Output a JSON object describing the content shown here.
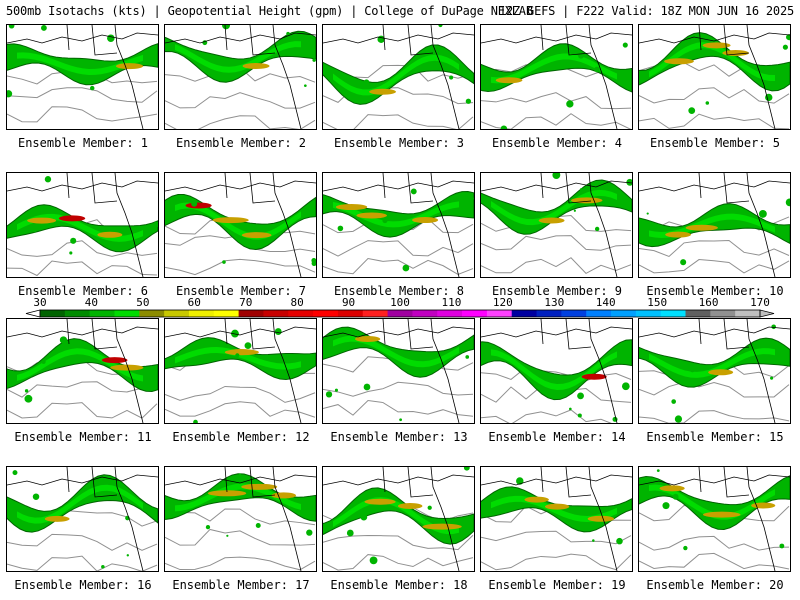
{
  "header": {
    "title_left": "500mb Isotachs (kts) | Geopotential Height (gpm) | College of DuPage NEXLAB",
    "title_right": "12Z GEFS | F222 Valid: 18Z MON JUN 16 2025"
  },
  "members": [
    "Ensemble Member: 1",
    "Ensemble Member: 2",
    "Ensemble Member: 3",
    "Ensemble Member: 4",
    "Ensemble Member: 5",
    "Ensemble Member: 6",
    "Ensemble Member: 7",
    "Ensemble Member: 8",
    "Ensemble Member: 9",
    "Ensemble Member: 10",
    "Ensemble Member: 11",
    "Ensemble Member: 12",
    "Ensemble Member: 13",
    "Ensemble Member: 14",
    "Ensemble Member: 15",
    "Ensemble Member: 16",
    "Ensemble Member: 17",
    "Ensemble Member: 18",
    "Ensemble Member: 19",
    "Ensemble Member: 20"
  ],
  "colorbar": {
    "labels": [
      "30",
      "40",
      "50",
      "60",
      "70",
      "80",
      "90",
      "100",
      "110",
      "120",
      "130",
      "140",
      "150",
      "160",
      "170"
    ],
    "colors": [
      "#006400",
      "#008c00",
      "#00b400",
      "#00dc00",
      "#8c8c00",
      "#c8c800",
      "#f0f000",
      "#ffff00",
      "#a00000",
      "#c80000",
      "#e60000",
      "#ff0000",
      "#dc0000",
      "#ff2020",
      "#a000a0",
      "#c000c0",
      "#e000e0",
      "#ff00ff",
      "#ff40ff",
      "#0000a0",
      "#0020c0",
      "#0040e0",
      "#0080ff",
      "#00a0ff",
      "#00c0ff",
      "#00e0ff",
      "#606060",
      "#909090",
      "#c0c0c0"
    ]
  },
  "colors": {
    "jet_dark": "#006400",
    "jet_mid": "#00b400",
    "jet_light": "#00dc00",
    "jet_core_yellow": "#c8a000",
    "jet_core_red": "#c00000",
    "height_contour": "#909090",
    "coastline": "#000000"
  }
}
